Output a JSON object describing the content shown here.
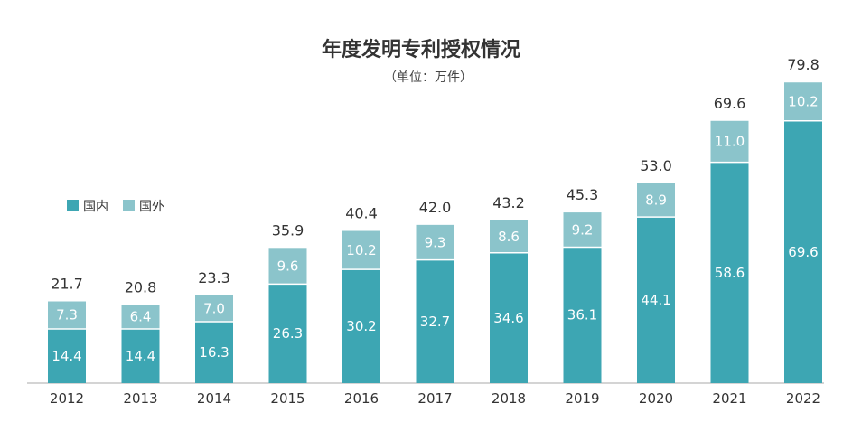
{
  "chart_data": {
    "type": "bar",
    "stacked": true,
    "title": "年度发明专利授权情况",
    "subtitle": "（单位：万件）",
    "categories": [
      "2012",
      "2013",
      "2014",
      "2015",
      "2016",
      "2017",
      "2018",
      "2019",
      "2020",
      "2021",
      "2022"
    ],
    "series": [
      {
        "name": "国内",
        "color": "#3da6b3",
        "values": [
          14.4,
          14.4,
          16.3,
          26.3,
          30.2,
          32.7,
          34.6,
          36.1,
          44.1,
          58.6,
          69.6
        ]
      },
      {
        "name": "国外",
        "color": "#8bc4cb",
        "values": [
          7.3,
          6.4,
          7.0,
          9.6,
          10.2,
          9.3,
          8.6,
          9.2,
          8.9,
          11.0,
          10.2
        ]
      }
    ],
    "totals": [
      "21.7",
      "20.8",
      "23.3",
      "35.9",
      "40.4",
      "42.0",
      "43.2",
      "45.3",
      "53.0",
      "69.6",
      "79.8"
    ],
    "segment_labels": {
      "国内": [
        "14.4",
        "14.4",
        "16.3",
        "26.3",
        "30.2",
        "32.7",
        "34.6",
        "36.1",
        "44.1",
        "58.6",
        "69.6"
      ],
      "国外": [
        "7.3",
        "6.4",
        "7.0",
        "9.6",
        "10.2",
        "9.3",
        "8.6",
        "9.2",
        "8.9",
        "11.0",
        "10.2"
      ]
    },
    "legend_position": "left",
    "xlabel": "",
    "ylabel": "",
    "ylim": [
      0,
      80
    ],
    "grid": false
  }
}
